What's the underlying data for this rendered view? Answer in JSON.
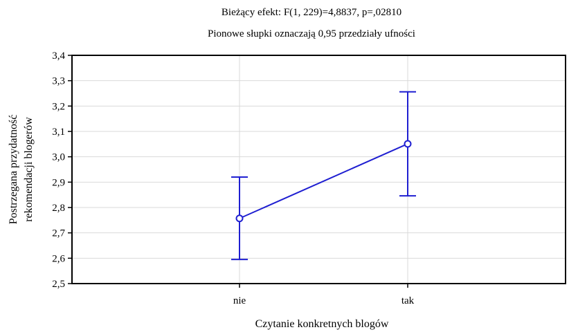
{
  "chart_data": {
    "type": "line",
    "title": "Bieżący efekt: F(1, 229)=4,8837, p=,02810",
    "subtitle": "Pionowe słupki oznaczają 0,95 przedziały ufności",
    "xlabel": "Czytanie konkretnych blogów",
    "ylabel_lines": [
      "Postrzegana przydatność",
      "rekomendacji  blogerów"
    ],
    "categories": [
      "nie",
      "tak"
    ],
    "means": [
      2.757,
      3.051
    ],
    "ci_lower": [
      2.595,
      2.846
    ],
    "ci_upper": [
      2.92,
      3.256
    ],
    "ylim": [
      2.5,
      3.4
    ],
    "yticks": [
      2.5,
      2.6,
      2.7,
      2.8,
      2.9,
      3.0,
      3.1,
      3.2,
      3.3,
      3.4
    ],
    "ytick_labels": [
      "2,5",
      "2,6",
      "2,7",
      "2,8",
      "2,9",
      "3,0",
      "3,1",
      "3,2",
      "3,3",
      "3,4"
    ],
    "grid": true,
    "series_color": "#1f1fd1"
  }
}
